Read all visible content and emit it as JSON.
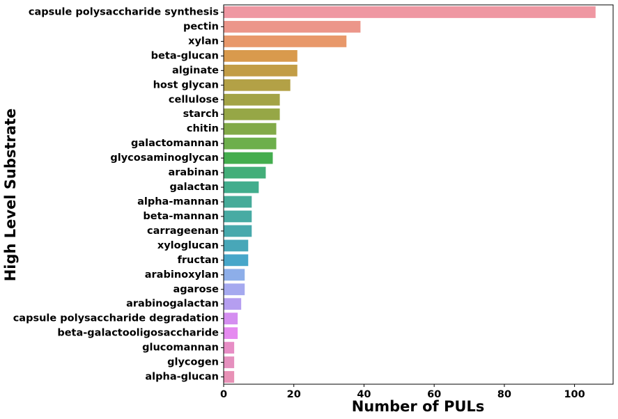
{
  "chart_data": {
    "type": "bar",
    "orientation": "horizontal",
    "xlabel": "Number of PULs",
    "ylabel": "High Level Substrate",
    "xlim": [
      0,
      111
    ],
    "xticks": [
      0,
      20,
      40,
      60,
      80,
      100
    ],
    "grid": false,
    "categories": [
      "capsule polysaccharide synthesis",
      "pectin",
      "xylan",
      "beta-glucan",
      "alginate",
      "host glycan",
      "cellulose",
      "starch",
      "chitin",
      "galactomannan",
      "glycosaminoglycan",
      "arabinan",
      "galactan",
      "alpha-mannan",
      "beta-mannan",
      "carrageenan",
      "xyloglucan",
      "fructan",
      "arabinoxylan",
      "agarose",
      "arabinogalactan",
      "capsule polysaccharide degradation",
      "beta-galactooligosaccharide",
      "glucomannan",
      "glycogen",
      "alpha-glucan"
    ],
    "values": [
      106,
      39,
      35,
      21,
      21,
      19,
      16,
      16,
      15,
      15,
      14,
      12,
      10,
      8,
      8,
      8,
      7,
      7,
      6,
      6,
      5,
      4,
      4,
      3,
      3,
      3
    ],
    "colors": [
      "#ef97a2",
      "#ec968a",
      "#e8986a",
      "#d99a4d",
      "#c29d46",
      "#b3a146",
      "#a3a346",
      "#96a746",
      "#82aa48",
      "#6daf4c",
      "#44ad4e",
      "#43ae79",
      "#42ad8d",
      "#46ab99",
      "#47aba3",
      "#47a9ac",
      "#48a7b8",
      "#47a6c9",
      "#8daee9",
      "#a5a9ef",
      "#b59ef0",
      "#d48ef0",
      "#e58af0",
      "#e78dc5",
      "#e590be",
      "#e891b6"
    ]
  }
}
